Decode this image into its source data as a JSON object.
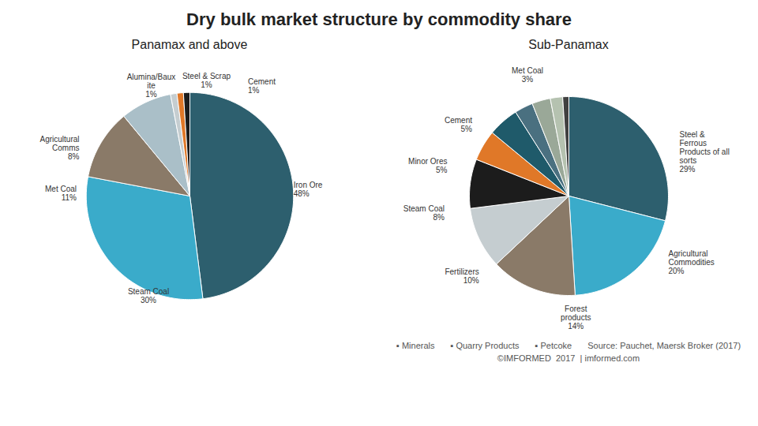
{
  "title": "Dry bulk market structure by commodity share",
  "chart_data": [
    {
      "type": "pie",
      "title": "Panamax and above",
      "categories": [
        "Iron Ore",
        "Steam Coal",
        "Met Coal",
        "Agricultural\nComms",
        "Alumina/Baux\nite",
        "Steel & Scrap",
        "Cement"
      ],
      "values": [
        48,
        30,
        11,
        8,
        1,
        1,
        1
      ],
      "value_labels": [
        "48%",
        "30%",
        "11%",
        "8%",
        "1%",
        "1%",
        "1%"
      ],
      "colors": [
        "#2d5f6e",
        "#3aabca",
        "#8a7a68",
        "#aabfc8",
        "#c5cdd0",
        "#e07828",
        "#1c1c1c"
      ],
      "data_labels": true
    },
    {
      "type": "pie",
      "title": "Sub-Panamax",
      "categories": [
        "Steel &\nFerrous\nProducts of all\nsorts",
        "Agricultural\nCommodities",
        "Forest\nproducts",
        "Fertilizers",
        "Steam Coal",
        "Minor Ores",
        "Cement",
        "Met Coal",
        null,
        null,
        null
      ],
      "values": [
        29,
        20,
        14,
        10,
        8,
        5,
        5,
        3,
        3,
        2,
        1
      ],
      "value_labels": [
        "29%",
        "20%",
        "14%",
        "10%",
        "8%",
        "5%",
        "5%",
        "3%",
        null,
        null,
        null
      ],
      "colors": [
        "#2d5f6e",
        "#3aabca",
        "#8a7a68",
        "#c5cdd0",
        "#1c1c1c",
        "#e07828",
        "#1f5a6a",
        "#4a7080",
        "#9aa898",
        "#b5c2b0",
        "#404040"
      ],
      "data_labels": true
    }
  ],
  "annotations": [
    "▪ Minerals",
    "▪ Quarry Products",
    "▪ Petcoke",
    "Source: Pauchet, Maersk Broker (2017)",
    "©IMFORMED  2017  | imformed.com"
  ]
}
